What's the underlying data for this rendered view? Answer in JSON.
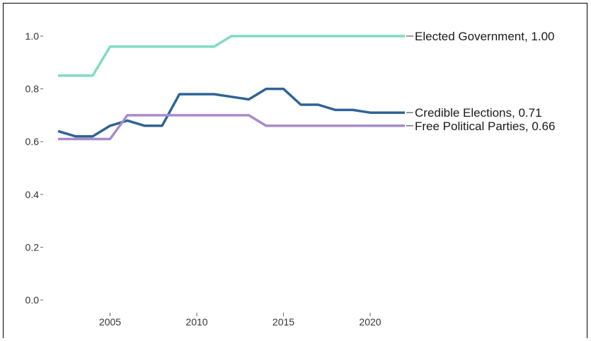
{
  "chart_data": {
    "type": "line",
    "title": "",
    "xlabel": "",
    "ylabel": "",
    "xlim": [
      2002,
      2022
    ],
    "ylim": [
      0,
      1.05
    ],
    "x_ticks": [
      "2005",
      "2010",
      "2015",
      "2020"
    ],
    "y_ticks": [
      "0.0",
      "0.2",
      "0.4",
      "0.6",
      "0.8",
      "1.0"
    ],
    "x": [
      2002,
      2003,
      2004,
      2005,
      2006,
      2007,
      2008,
      2009,
      2010,
      2011,
      2012,
      2013,
      2014,
      2015,
      2016,
      2017,
      2018,
      2019,
      2020,
      2021,
      2022
    ],
    "series": [
      {
        "name": "Elected Government",
        "end_label": "Elected Government, 1.00",
        "color": "#7fdcc4",
        "values": [
          0.85,
          0.85,
          0.85,
          0.96,
          0.96,
          0.96,
          0.96,
          0.96,
          0.96,
          0.96,
          1.0,
          1.0,
          1.0,
          1.0,
          1.0,
          1.0,
          1.0,
          1.0,
          1.0,
          1.0,
          1.0
        ]
      },
      {
        "name": "Credible Elections",
        "end_label": "Credible Elections, 0.71",
        "color": "#2e6496",
        "values": [
          0.64,
          0.62,
          0.62,
          0.66,
          0.68,
          0.66,
          0.66,
          0.78,
          0.78,
          0.78,
          0.77,
          0.76,
          0.8,
          0.8,
          0.74,
          0.74,
          0.72,
          0.72,
          0.71,
          0.71,
          0.71
        ]
      },
      {
        "name": "Free Political Parties",
        "end_label": "Free Political Parties, 0.66",
        "color": "#a78bcc",
        "values": [
          0.61,
          0.61,
          0.61,
          0.61,
          0.7,
          0.7,
          0.7,
          0.7,
          0.7,
          0.7,
          0.7,
          0.7,
          0.66,
          0.66,
          0.66,
          0.66,
          0.66,
          0.66,
          0.66,
          0.66,
          0.66
        ]
      }
    ]
  }
}
